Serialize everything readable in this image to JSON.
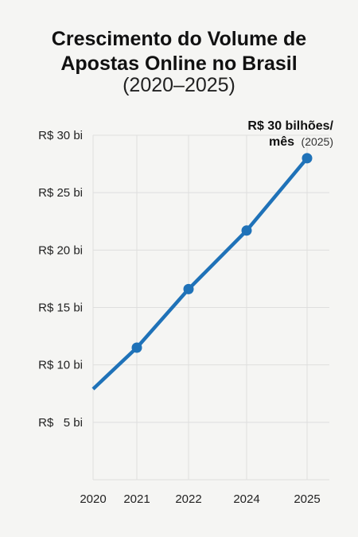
{
  "chart_data": {
    "type": "line",
    "title_line1": "Crescimento do Volume de",
    "title_line2": "Apostas Online no Brasil",
    "subtitle": "(2020–2025)",
    "x_tick_labels": [
      "2020",
      "2021",
      "2022",
      "2024",
      "2025"
    ],
    "y_tick_labels": [
      "R$ 30 bi",
      "R$ 25 bi",
      "R$ 20 bi",
      "R$ 15 bi",
      "R$ 10 bi",
      "R$   5 bi"
    ],
    "y_ticks": [
      30,
      25,
      20,
      15,
      10,
      5
    ],
    "ylim": [
      0,
      30
    ],
    "x_ticks": [
      2020,
      2021,
      2022,
      2024,
      2025
    ],
    "series": [
      {
        "points": [
          {
            "x": 2020,
            "y": 7.9,
            "marker": false
          },
          {
            "x": 2021,
            "y": 11.5,
            "marker": true
          },
          {
            "x": 2022,
            "y": 16.6,
            "marker": true
          },
          {
            "x": 2024,
            "y": 21.7,
            "marker": true
          },
          {
            "x": 2025,
            "y": 28.0,
            "marker": true
          }
        ]
      }
    ],
    "annotation": {
      "line1": "R$ 30 bilhões/",
      "line2_main": "mês",
      "line2_sub": "(2025)"
    },
    "grid": true,
    "line_color": "#1f72b8",
    "grid_color": "#dedede"
  }
}
